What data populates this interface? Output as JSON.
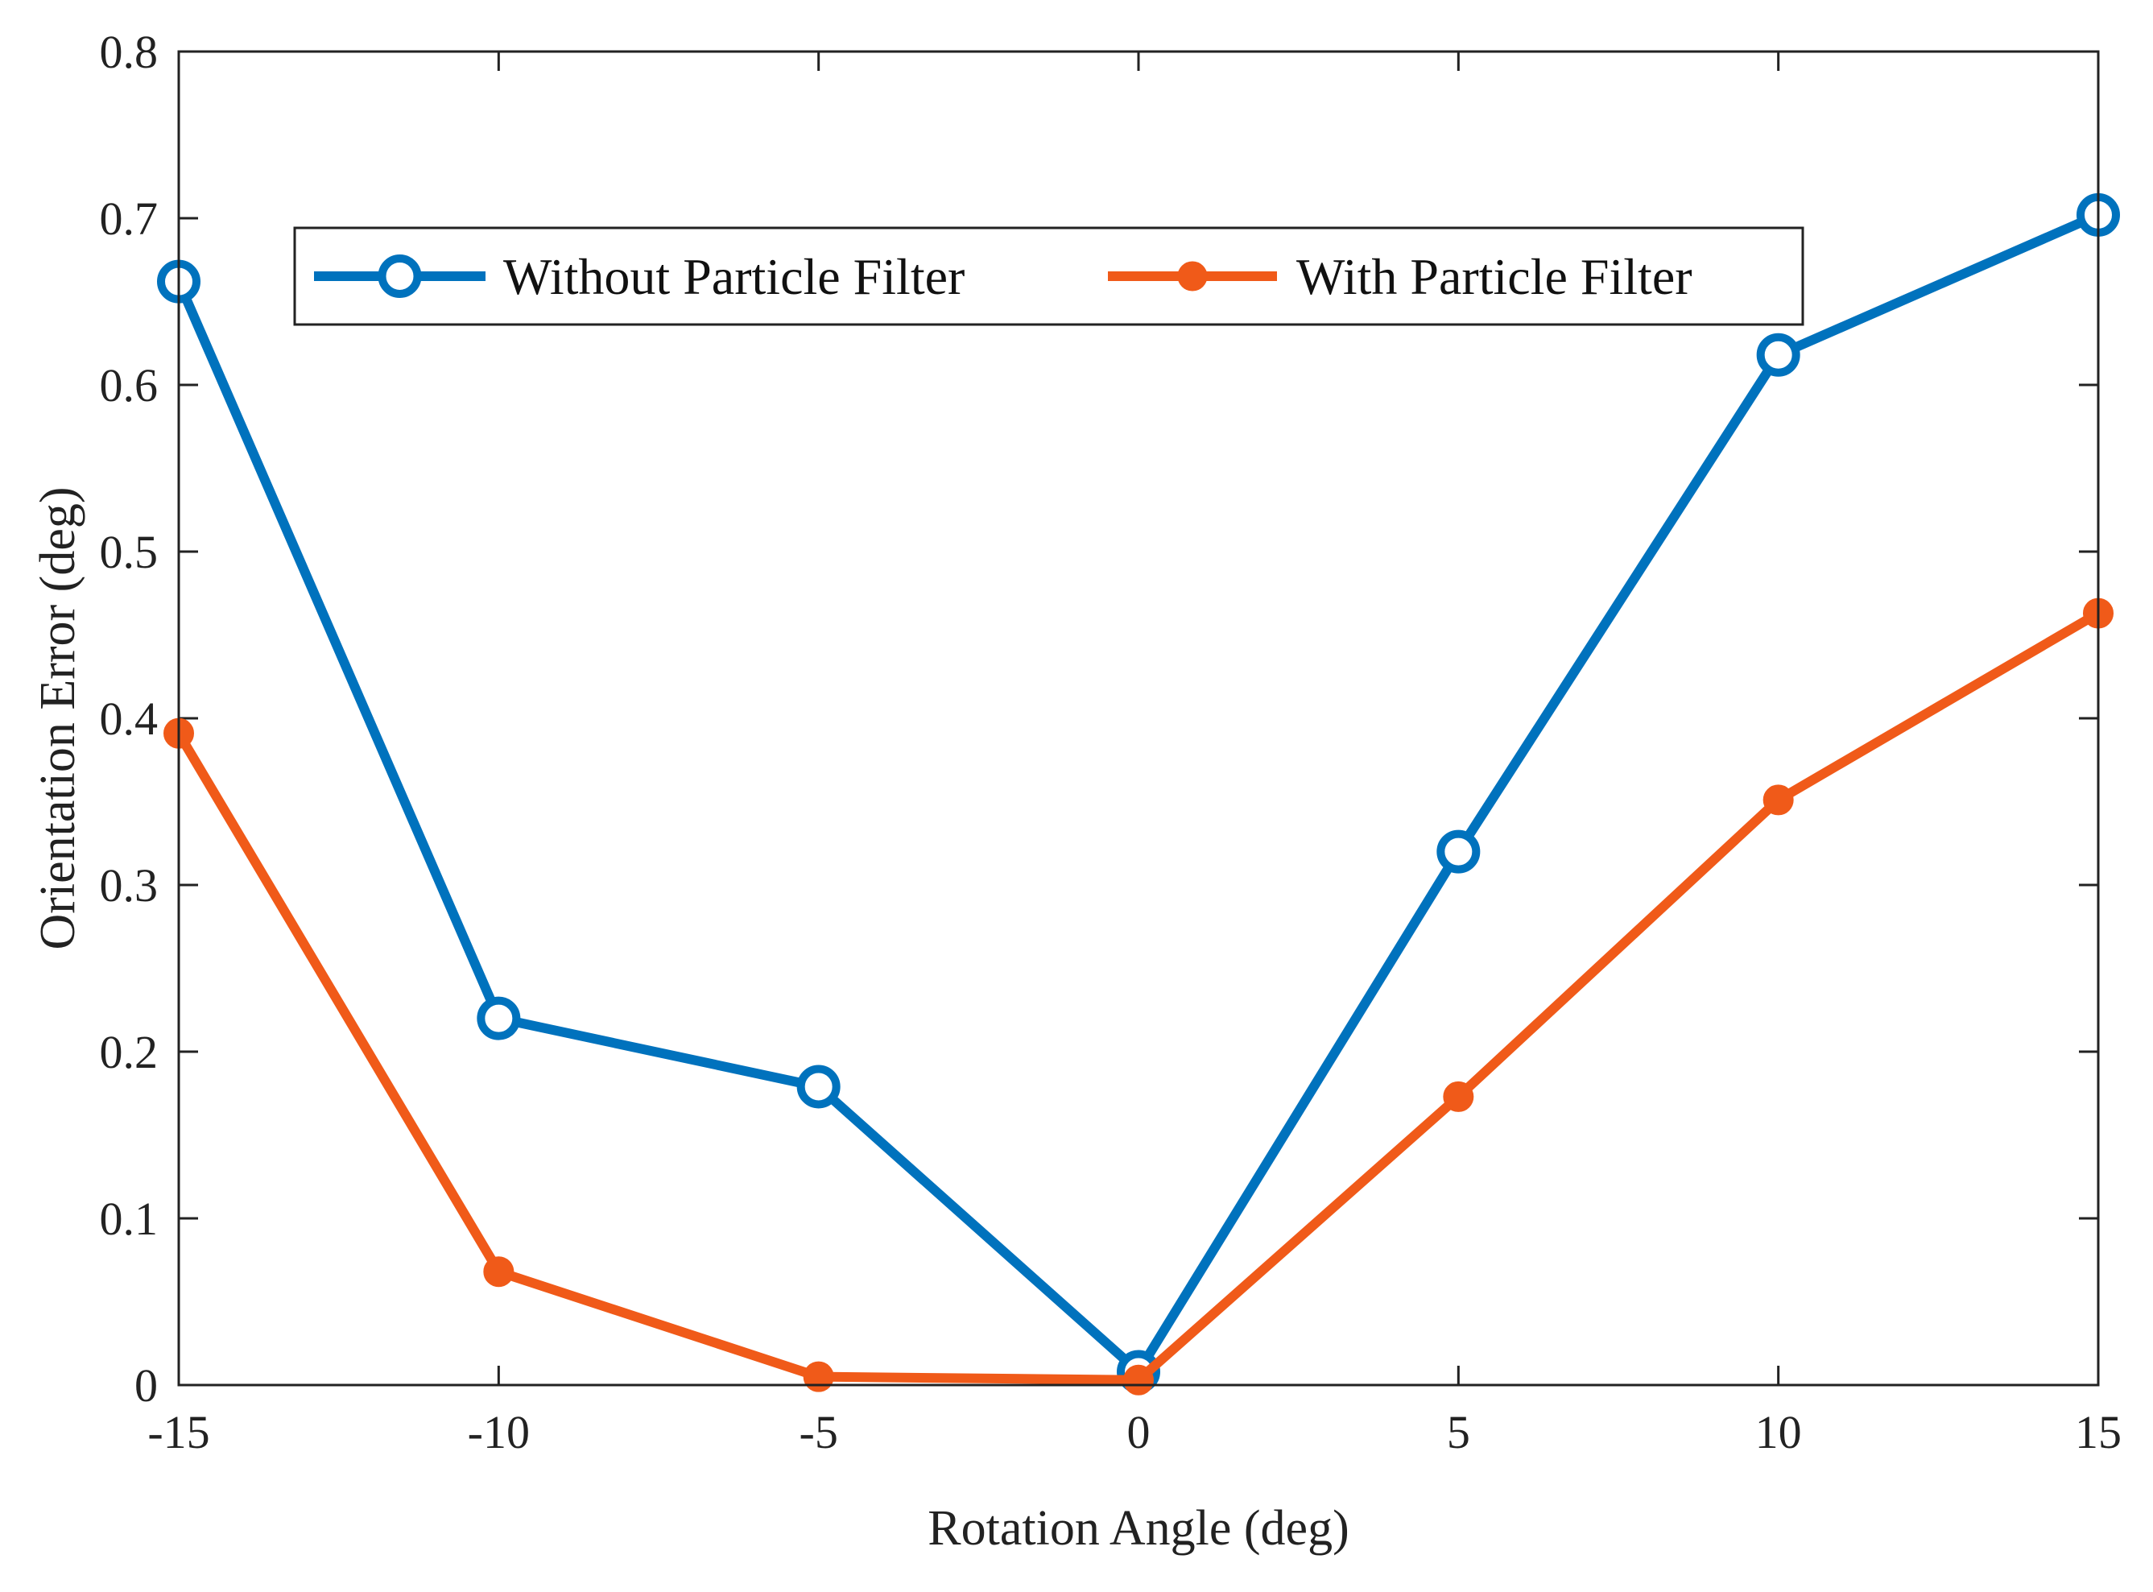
{
  "chart_data": {
    "type": "line",
    "title": "",
    "xlabel": "Rotation Angle (deg)",
    "ylabel": "Orientation Error (deg)",
    "x": [
      -15,
      -10,
      -5,
      0,
      5,
      10,
      15
    ],
    "xlim": [
      -15,
      15
    ],
    "ylim": [
      0,
      0.8
    ],
    "xticks": [
      -15,
      -10,
      -5,
      0,
      5,
      10,
      15
    ],
    "xtick_labels": [
      "-15",
      "-10",
      "-5",
      "0",
      "5",
      "10",
      "15"
    ],
    "yticks": [
      0,
      0.1,
      0.2,
      0.3,
      0.4,
      0.5,
      0.6,
      0.7,
      0.8
    ],
    "ytick_labels": [
      "0",
      "0.1",
      "0.2",
      "0.3",
      "0.4",
      "0.5",
      "0.6",
      "0.7",
      "0.8"
    ],
    "grid": false,
    "legend_position": "top",
    "series": [
      {
        "name": "Without Particle Filter",
        "values": [
          0.662,
          0.22,
          0.179,
          0.008,
          0.32,
          0.618,
          0.702
        ],
        "color": "#0072bd",
        "marker": "open-circle"
      },
      {
        "name": "With Particle Filter",
        "values": [
          0.391,
          0.068,
          0.005,
          0.003,
          0.173,
          0.351,
          0.463
        ],
        "color": "#f05a19",
        "marker": "filled-circle"
      }
    ]
  }
}
